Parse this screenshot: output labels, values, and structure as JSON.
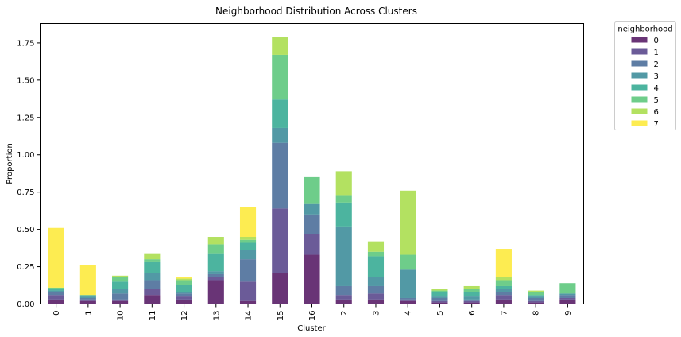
{
  "chart_data": {
    "type": "bar",
    "stacked": true,
    "title": "Neighborhood Distribution Across Clusters",
    "xlabel": "Cluster",
    "ylabel": "Proportion",
    "ylim": [
      0,
      1.88
    ],
    "yticks": [
      "0.00",
      "0.25",
      "0.50",
      "0.75",
      "1.00",
      "1.25",
      "1.50",
      "1.75"
    ],
    "grid": false,
    "legend": {
      "title": "neighborhood",
      "placement": "outside-top-right"
    },
    "categories": [
      "0",
      "1",
      "10",
      "11",
      "12",
      "13",
      "14",
      "15",
      "16",
      "2",
      "3",
      "4",
      "5",
      "6",
      "7",
      "8",
      "9"
    ],
    "series": [
      {
        "name": "0",
        "color": "#440154",
        "values": [
          0.03,
          0.02,
          0.02,
          0.06,
          0.03,
          0.16,
          0.02,
          0.21,
          0.33,
          0.03,
          0.03,
          0.02,
          0.01,
          0.01,
          0.03,
          0.01,
          0.03
        ]
      },
      {
        "name": "1",
        "color": "#46327e",
        "values": [
          0.03,
          0.01,
          0.01,
          0.04,
          0.02,
          0.02,
          0.13,
          0.43,
          0.14,
          0.03,
          0.04,
          0.01,
          0.01,
          0.01,
          0.03,
          0.01,
          0.01
        ]
      },
      {
        "name": "2",
        "color": "#365c8d",
        "values": [
          0.02,
          0.01,
          0.04,
          0.06,
          0.02,
          0.02,
          0.15,
          0.44,
          0.13,
          0.06,
          0.05,
          0.01,
          0.02,
          0.01,
          0.02,
          0.02,
          0.02
        ]
      },
      {
        "name": "3",
        "color": "#277f8e",
        "values": [
          0.01,
          0.01,
          0.03,
          0.05,
          0.01,
          0.02,
          0.06,
          0.1,
          0.07,
          0.4,
          0.06,
          0.19,
          0.01,
          0.02,
          0.02,
          0.01,
          0.01
        ]
      },
      {
        "name": "4",
        "color": "#1fa187",
        "values": [
          0.01,
          0.01,
          0.05,
          0.07,
          0.05,
          0.12,
          0.05,
          0.19,
          0.0,
          0.16,
          0.14,
          0.0,
          0.03,
          0.03,
          0.02,
          0.01,
          0.0
        ]
      },
      {
        "name": "5",
        "color": "#4ac16d",
        "values": [
          0.01,
          0.0,
          0.03,
          0.02,
          0.03,
          0.06,
          0.02,
          0.3,
          0.18,
          0.05,
          0.03,
          0.1,
          0.01,
          0.02,
          0.04,
          0.02,
          0.07
        ]
      },
      {
        "name": "6",
        "color": "#a0da39",
        "values": [
          0.0,
          0.0,
          0.01,
          0.04,
          0.01,
          0.05,
          0.02,
          0.12,
          0.0,
          0.16,
          0.07,
          0.43,
          0.01,
          0.02,
          0.02,
          0.01,
          0.0
        ]
      },
      {
        "name": "7",
        "color": "#fde725",
        "values": [
          0.4,
          0.2,
          0.0,
          0.0,
          0.01,
          0.0,
          0.2,
          0.0,
          0.0,
          0.0,
          0.0,
          0.0,
          0.0,
          0.0,
          0.19,
          0.0,
          0.0
        ]
      }
    ]
  }
}
